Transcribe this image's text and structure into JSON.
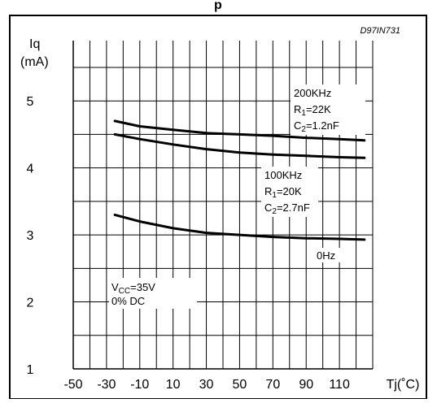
{
  "header_fragment": "p",
  "chart_data": {
    "type": "line",
    "figure_code": "D97IN731",
    "ylabel_line1": "Iq",
    "ylabel_line2": "(mA)",
    "xlabel": "Tj(˚C)",
    "xlim": [
      -50,
      130
    ],
    "ylim": [
      1,
      5.9
    ],
    "x_ticks": [
      -50,
      -30,
      -10,
      10,
      30,
      50,
      70,
      90,
      110
    ],
    "y_ticks": [
      1,
      2,
      3,
      4,
      5
    ],
    "grid": true,
    "series": [
      {
        "name": "200KHz",
        "x": [
          -25,
          -10,
          10,
          30,
          50,
          70,
          90,
          110,
          125
        ],
        "y": [
          4.7,
          4.62,
          4.57,
          4.52,
          4.5,
          4.48,
          4.45,
          4.43,
          4.41
        ]
      },
      {
        "name": "100KHz",
        "x": [
          -25,
          -10,
          10,
          30,
          50,
          70,
          90,
          110,
          125
        ],
        "y": [
          4.5,
          4.43,
          4.35,
          4.28,
          4.23,
          4.2,
          4.18,
          4.16,
          4.15
        ]
      },
      {
        "name": "0Hz",
        "x": [
          -25,
          -10,
          10,
          30,
          50,
          70,
          90,
          110,
          125
        ],
        "y": [
          3.3,
          3.2,
          3.1,
          3.03,
          3.0,
          2.97,
          2.95,
          2.94,
          2.93
        ]
      }
    ],
    "annotations": {
      "a200": {
        "l1": "200KHz",
        "r_main": "R",
        "r_sub": "1",
        "r_val": "=22K",
        "c_main": "C",
        "c_sub": "2",
        "c_val": "=1.2nF"
      },
      "a100": {
        "l1": "100KHz",
        "r_main": "R",
        "r_sub": "1",
        "r_val": "=20K",
        "c_main": "C",
        "c_sub": "2",
        "c_val": "=2.7nF"
      },
      "a0": {
        "l1": "0Hz"
      },
      "cond": {
        "v_main": "V",
        "v_sub": "CC",
        "v_val": "=35V",
        "dc": "0% DC"
      }
    }
  }
}
